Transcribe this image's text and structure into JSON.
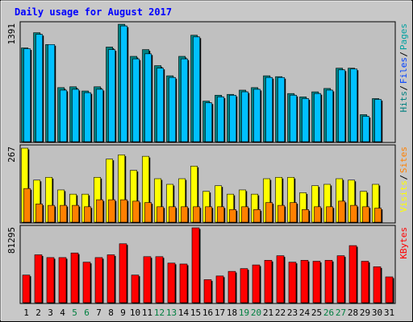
{
  "chart_data": {
    "type": "bar",
    "title": "Daily usage for August 2017",
    "categories": [
      "1",
      "2",
      "3",
      "4",
      "5",
      "6",
      "7",
      "8",
      "9",
      "10",
      "11",
      "12",
      "13",
      "14",
      "15",
      "16",
      "17",
      "18",
      "19",
      "20",
      "21",
      "22",
      "23",
      "24",
      "25",
      "26",
      "27",
      "28",
      "29",
      "30",
      "31"
    ],
    "weekend_days": [
      "5",
      "6",
      "12",
      "13",
      "19",
      "20",
      "26",
      "27"
    ],
    "panels": [
      {
        "id": "hits",
        "ylabel_top_tick": "1391",
        "ylim": [
          0,
          1391
        ],
        "legend": [
          {
            "text": "Pages",
            "color": "#00a0a0"
          },
          {
            "text": "Files",
            "color": "#0040ff"
          },
          {
            "text": "Hits",
            "color": "#008080"
          }
        ],
        "series": [
          {
            "name": "Hits",
            "color": "#008080",
            "values": [
              1110,
              1290,
              1150,
              640,
              650,
              600,
              650,
              1120,
              1390,
              1010,
              1090,
              900,
              780,
              1010,
              1260,
              480,
              550,
              560,
              610,
              640,
              780,
              770,
              570,
              530,
              590,
              630,
              870,
              870,
              320,
              510,
              0
            ]
          },
          {
            "name": "Files",
            "color": "#00c0ff",
            "values": [
              1100,
              1270,
              1150,
              610,
              620,
              580,
              620,
              1090,
              1370,
              980,
              1040,
              870,
              760,
              980,
              1240,
              460,
              530,
              550,
              590,
              620,
              760,
              760,
              550,
              510,
              570,
              610,
              850,
              860,
              300,
              500,
              0
            ]
          }
        ]
      },
      {
        "id": "visits",
        "ylabel_top_tick": "267",
        "ylim": [
          0,
          267
        ],
        "legend": [
          {
            "text": "Sites",
            "color": "#ff8000"
          },
          {
            "text": "Visits",
            "color": "#ffff00"
          }
        ],
        "series": [
          {
            "name": "Visits",
            "color": "#ffff00",
            "values": [
              264,
              150,
              160,
              115,
              100,
              100,
              160,
              225,
              240,
              185,
              235,
              155,
              135,
              155,
              200,
              110,
              130,
              100,
              115,
              100,
              155,
              160,
              160,
              105,
              130,
              135,
              155,
              150,
              110,
              135,
              0
            ]
          },
          {
            "name": "Sites",
            "color": "#ff8000",
            "values": [
              120,
              65,
              60,
              60,
              60,
              55,
              80,
              80,
              80,
              75,
              70,
              55,
              55,
              55,
              55,
              55,
              55,
              45,
              55,
              45,
              70,
              60,
              70,
              45,
              55,
              55,
              75,
              60,
              55,
              50,
              0
            ]
          }
        ]
      },
      {
        "id": "kbytes",
        "ylabel_top_tick": "81295",
        "ylim": [
          0,
          81295
        ],
        "legend": [
          {
            "text": "KBytes",
            "color": "#ff0000"
          }
        ],
        "series": [
          {
            "name": "KBytes",
            "color": "#ff0000",
            "values": [
              30000,
              52000,
              49000,
              49000,
              54000,
              44000,
              49000,
              52000,
              64000,
              30000,
              50000,
              50000,
              43000,
              42000,
              81295,
              25000,
              29000,
              34000,
              37000,
              41000,
              46000,
              51000,
              44000,
              46000,
              45000,
              46000,
              51000,
              62000,
              45000,
              39000,
              28000
            ]
          }
        ]
      }
    ]
  }
}
